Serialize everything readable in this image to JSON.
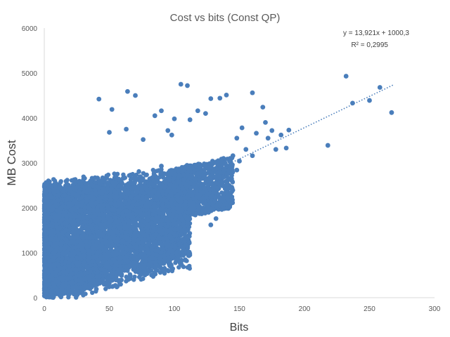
{
  "chart_data": {
    "type": "scatter",
    "title": "Cost  vs bits (Const QP)",
    "xlabel": "Bits",
    "ylabel": "MB Cost",
    "xlim": [
      0,
      300
    ],
    "ylim": [
      0,
      6000
    ],
    "x_ticks": [
      "0",
      "50",
      "100",
      "150",
      "200",
      "250",
      "300"
    ],
    "y_ticks": [
      "0",
      "1000",
      "2000",
      "3000",
      "4000",
      "5000",
      "6000"
    ],
    "grid": false,
    "legend": "none",
    "color": "#4a7ebb",
    "trendline": {
      "type": "linear",
      "slope": 13.921,
      "intercept": 1000.3,
      "x_range": [
        125,
        268
      ],
      "equation_label": "y = 13,921x + 1000,3",
      "r2_label": "R² = 0,2995"
    },
    "points": [
      [
        232,
        4930
      ],
      [
        258,
        4680
      ],
      [
        267,
        4120
      ],
      [
        250,
        4390
      ],
      [
        237,
        4330
      ],
      [
        218,
        3390
      ],
      [
        175,
        3720
      ],
      [
        182,
        3620
      ],
      [
        188,
        3730
      ],
      [
        186,
        3330
      ],
      [
        178,
        3300
      ],
      [
        172,
        3550
      ],
      [
        163,
        3660
      ],
      [
        160,
        4560
      ],
      [
        168,
        4240
      ],
      [
        170,
        3900
      ],
      [
        152,
        3780
      ],
      [
        148,
        3550
      ],
      [
        140,
        4510
      ],
      [
        135,
        4440
      ],
      [
        128,
        4430
      ],
      [
        124,
        4100
      ],
      [
        110,
        4720
      ],
      [
        105,
        4750
      ],
      [
        118,
        4160
      ],
      [
        112,
        3960
      ],
      [
        100,
        3980
      ],
      [
        98,
        3620
      ],
      [
        95,
        3720
      ],
      [
        90,
        4160
      ],
      [
        85,
        4050
      ],
      [
        76,
        3520
      ],
      [
        70,
        4500
      ],
      [
        64,
        4590
      ],
      [
        52,
        4190
      ],
      [
        42,
        4420
      ],
      [
        63,
        3750
      ],
      [
        50,
        3680
      ],
      [
        155,
        3300
      ],
      [
        145,
        3160
      ],
      [
        138,
        2980
      ],
      [
        132,
        2880
      ],
      [
        144,
        2650
      ],
      [
        126,
        2630
      ],
      [
        130,
        2400
      ],
      [
        136,
        2170
      ],
      [
        150,
        3040
      ],
      [
        160,
        3160
      ],
      [
        128,
        1620
      ],
      [
        132,
        1760
      ],
      [
        122,
        1950
      ],
      [
        115,
        2050
      ],
      [
        108,
        2350
      ],
      [
        104,
        2570
      ],
      [
        96,
        2750
      ],
      [
        88,
        2830
      ],
      [
        82,
        2650
      ],
      [
        78,
        2460
      ],
      [
        72,
        2230
      ],
      [
        68,
        2050
      ],
      [
        60,
        2300
      ],
      [
        55,
        2550
      ],
      [
        48,
        2710
      ],
      [
        45,
        2620
      ],
      [
        38,
        2480
      ],
      [
        110,
        1330
      ],
      [
        95,
        1480
      ],
      [
        88,
        1350
      ],
      [
        80,
        1620
      ],
      [
        70,
        1120
      ],
      [
        64,
        820
      ],
      [
        58,
        620
      ],
      [
        52,
        480
      ],
      [
        46,
        300
      ],
      [
        40,
        190
      ],
      [
        120,
        2530
      ],
      [
        118,
        2760
      ],
      [
        112,
        2820
      ],
      [
        90,
        2930
      ],
      [
        84,
        2370
      ],
      [
        76,
        2120
      ],
      [
        66,
        1850
      ],
      [
        62,
        1560
      ],
      [
        56,
        1250
      ],
      [
        54,
        950
      ],
      [
        148,
        2840
      ],
      [
        142,
        2780
      ],
      [
        100,
        2450
      ],
      [
        92,
        2180
      ],
      [
        86,
        2010
      ]
    ]
  }
}
